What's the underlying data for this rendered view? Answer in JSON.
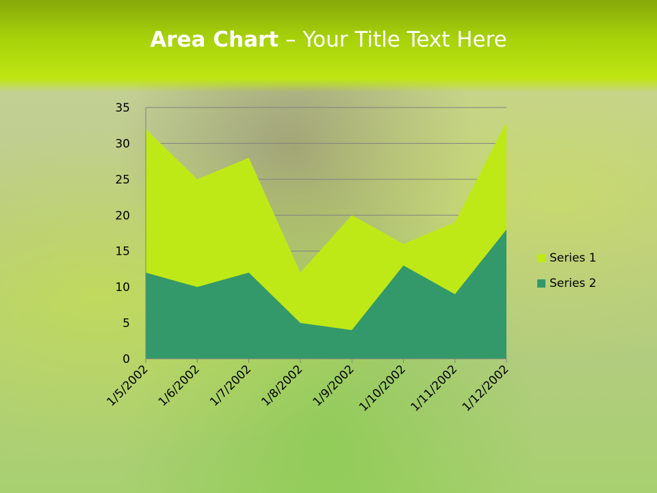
{
  "title": {
    "bold": "Area Chart",
    "rest": " – Your Title Text Here"
  },
  "chart_data": {
    "type": "area",
    "categories": [
      "1/5/2002",
      "1/6/2002",
      "1/7/2002",
      "1/8/2002",
      "1/9/2002",
      "1/10/2002",
      "1/11/2002",
      "1/12/2002"
    ],
    "series": [
      {
        "name": "Series 1",
        "values": [
          32,
          25,
          28,
          12,
          20,
          16,
          19,
          33
        ],
        "color": "#bfe916"
      },
      {
        "name": "Series 2",
        "values": [
          12,
          10,
          12,
          5,
          4,
          13,
          9,
          18
        ],
        "color": "#33996a"
      }
    ],
    "ylim": [
      0,
      35
    ],
    "yticks": [
      0,
      5,
      10,
      15,
      20,
      25,
      30,
      35
    ],
    "grid": true,
    "legend": "right"
  }
}
